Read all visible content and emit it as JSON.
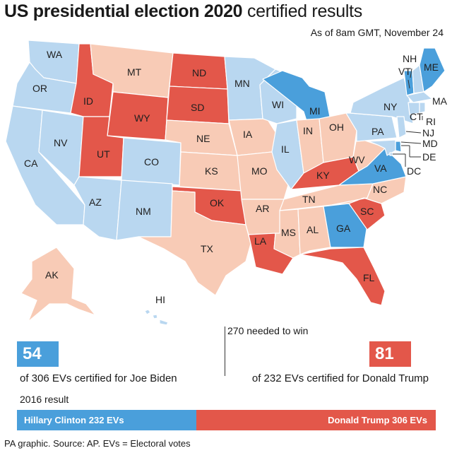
{
  "title": {
    "bold": "US presidential election 2020",
    "light": "certified results"
  },
  "as_of": "As of 8am GMT, November 24",
  "colors": {
    "biden_certified": "#4a9fdb",
    "biden_pending": "#b9d7f0",
    "trump_certified": "#e3574a",
    "trump_pending": "#f8cbb6",
    "state_border": "#ffffff"
  },
  "states": [
    {
      "abbr": "WA",
      "winner": "Biden",
      "certified": false
    },
    {
      "abbr": "OR",
      "winner": "Biden",
      "certified": false
    },
    {
      "abbr": "CA",
      "winner": "Biden",
      "certified": false
    },
    {
      "abbr": "NV",
      "winner": "Biden",
      "certified": false
    },
    {
      "abbr": "ID",
      "winner": "Trump",
      "certified": true
    },
    {
      "abbr": "MT",
      "winner": "Trump",
      "certified": false
    },
    {
      "abbr": "WY",
      "winner": "Trump",
      "certified": true
    },
    {
      "abbr": "UT",
      "winner": "Trump",
      "certified": true
    },
    {
      "abbr": "AZ",
      "winner": "Biden",
      "certified": false
    },
    {
      "abbr": "CO",
      "winner": "Biden",
      "certified": false
    },
    {
      "abbr": "NM",
      "winner": "Biden",
      "certified": false
    },
    {
      "abbr": "ND",
      "winner": "Trump",
      "certified": true
    },
    {
      "abbr": "SD",
      "winner": "Trump",
      "certified": true
    },
    {
      "abbr": "NE",
      "winner": "Trump",
      "certified": false
    },
    {
      "abbr": "KS",
      "winner": "Trump",
      "certified": false
    },
    {
      "abbr": "OK",
      "winner": "Trump",
      "certified": true
    },
    {
      "abbr": "TX",
      "winner": "Trump",
      "certified": false
    },
    {
      "abbr": "MN",
      "winner": "Biden",
      "certified": false
    },
    {
      "abbr": "IA",
      "winner": "Trump",
      "certified": false
    },
    {
      "abbr": "MO",
      "winner": "Trump",
      "certified": false
    },
    {
      "abbr": "AR",
      "winner": "Trump",
      "certified": false
    },
    {
      "abbr": "LA",
      "winner": "Trump",
      "certified": true
    },
    {
      "abbr": "WI",
      "winner": "Biden",
      "certified": false
    },
    {
      "abbr": "IL",
      "winner": "Biden",
      "certified": false
    },
    {
      "abbr": "MI",
      "winner": "Biden",
      "certified": true
    },
    {
      "abbr": "IN",
      "winner": "Trump",
      "certified": false
    },
    {
      "abbr": "OH",
      "winner": "Trump",
      "certified": false
    },
    {
      "abbr": "KY",
      "winner": "Trump",
      "certified": true
    },
    {
      "abbr": "TN",
      "winner": "Trump",
      "certified": false
    },
    {
      "abbr": "MS",
      "winner": "Trump",
      "certified": false
    },
    {
      "abbr": "AL",
      "winner": "Trump",
      "certified": false
    },
    {
      "abbr": "GA",
      "winner": "Biden",
      "certified": true
    },
    {
      "abbr": "FL",
      "winner": "Trump",
      "certified": true
    },
    {
      "abbr": "SC",
      "winner": "Trump",
      "certified": true
    },
    {
      "abbr": "NC",
      "winner": "Trump",
      "certified": false
    },
    {
      "abbr": "VA",
      "winner": "Biden",
      "certified": true
    },
    {
      "abbr": "WV",
      "winner": "Trump",
      "certified": false
    },
    {
      "abbr": "PA",
      "winner": "Biden",
      "certified": false
    },
    {
      "abbr": "NY",
      "winner": "Biden",
      "certified": false
    },
    {
      "abbr": "VT",
      "winner": "Biden",
      "certified": true
    },
    {
      "abbr": "NH",
      "winner": "Biden",
      "certified": false
    },
    {
      "abbr": "ME",
      "winner": "Biden",
      "certified": true
    },
    {
      "abbr": "MA",
      "winner": "Biden",
      "certified": false
    },
    {
      "abbr": "CT",
      "winner": "Biden",
      "certified": false
    },
    {
      "abbr": "RI",
      "winner": "Biden",
      "certified": false
    },
    {
      "abbr": "NJ",
      "winner": "Biden",
      "certified": false
    },
    {
      "abbr": "DE",
      "winner": "Biden",
      "certified": true
    },
    {
      "abbr": "MD",
      "winner": "Biden",
      "certified": false
    },
    {
      "abbr": "DC",
      "winner": "Biden",
      "certified": false
    },
    {
      "abbr": "AK",
      "winner": "Trump",
      "certified": false
    },
    {
      "abbr": "HI",
      "winner": "Biden",
      "certified": false
    }
  ],
  "summary": {
    "needed_text": "270 needed to win",
    "biden_certified_evs": "54",
    "biden_caption": "of 306 EVs certified for Joe Biden",
    "trump_certified_evs": "81",
    "trump_caption": "of 232 EVs certified for Donald Trump"
  },
  "result_2016": {
    "label": "2016 result",
    "clinton": "Hillary Clinton 232 EVs",
    "trump": "Donald Trump 306 EVs"
  },
  "source": "PA graphic. Source: AP. EVs = Electoral votes"
}
